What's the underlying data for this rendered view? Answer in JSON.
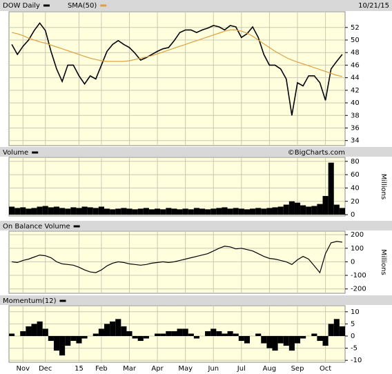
{
  "chart_data": [
    {
      "type": "line",
      "date": "10/21/15",
      "series": [
        {
          "name": "DOW Daily",
          "color": "#000000",
          "values": [
            49.3,
            47.7,
            49,
            50,
            51.5,
            52.7,
            51.5,
            48.2,
            45.4,
            43.4,
            46,
            46,
            44.3,
            43,
            44.3,
            43.8,
            46,
            48.2,
            49.3,
            49.9,
            49.3,
            48.8,
            47.9,
            46.8,
            47.2,
            47.7,
            48.2,
            48.6,
            48.8,
            49.9,
            51.2,
            51.6,
            51.6,
            51.2,
            51.6,
            51.9,
            52.3,
            52.1,
            51.6,
            52.3,
            52.1,
            50.4,
            51,
            52.1,
            50.4,
            47.7,
            46,
            46,
            45.4,
            43.8,
            38,
            43.2,
            42.7,
            44.3,
            44.3,
            43.2,
            40.4,
            45.4,
            46.6,
            47.7
          ]
        },
        {
          "name": "SMA(50)",
          "color": "#e0a040",
          "values": [
            51.2,
            51,
            50.7,
            50.3,
            50,
            49.7,
            49.5,
            49.2,
            48.9,
            48.6,
            48.3,
            48,
            47.7,
            47.4,
            47.1,
            46.9,
            46.7,
            46.6,
            46.6,
            46.6,
            46.6,
            46.7,
            46.9,
            47.1,
            47.3,
            47.5,
            47.8,
            48.1,
            48.4,
            48.7,
            49,
            49.3,
            49.6,
            49.9,
            50.2,
            50.5,
            50.8,
            51.1,
            51.4,
            51.6,
            51.6,
            51.4,
            51.1,
            50.6,
            50,
            49.4,
            48.8,
            48.2,
            47.7,
            47.2,
            46.8,
            46.5,
            46.2,
            45.9,
            45.6,
            45.3,
            45,
            44.7,
            44.4,
            44.2
          ]
        }
      ],
      "ylim": [
        33.2,
        54.5
      ],
      "yticks": [
        34,
        36,
        38,
        40,
        42,
        44,
        46,
        48,
        50,
        52
      ],
      "grid": true
    },
    {
      "type": "bar",
      "credit": "©BigCharts.com",
      "y_label": "Millions",
      "series": [
        {
          "name": "Volume",
          "color": "#000000",
          "values": [
            12,
            10,
            11,
            9,
            10,
            12,
            13,
            11,
            12,
            10,
            9,
            11,
            10,
            12,
            11,
            10,
            12,
            9,
            8,
            9,
            10,
            9,
            8,
            9,
            10,
            8,
            9,
            8,
            10,
            9,
            8,
            9,
            8,
            10,
            9,
            8,
            9,
            10,
            11,
            9,
            10,
            9,
            8,
            9,
            10,
            9,
            10,
            11,
            12,
            15,
            20,
            18,
            14,
            12,
            13,
            16,
            28,
            78,
            15,
            10
          ]
        }
      ],
      "ylim": [
        -2,
        86
      ],
      "yticks": [
        0,
        20,
        40,
        60,
        80
      ],
      "grid": true
    },
    {
      "type": "line",
      "y_label": "Millions",
      "series": [
        {
          "name": "On Balance Volume",
          "color": "#000000",
          "values": [
            0,
            -5,
            10,
            20,
            35,
            50,
            45,
            30,
            0,
            -15,
            -20,
            -25,
            -40,
            -60,
            -75,
            -80,
            -60,
            -30,
            -10,
            0,
            -5,
            -15,
            -20,
            -25,
            -20,
            -10,
            -5,
            0,
            -5,
            0,
            10,
            20,
            30,
            40,
            50,
            60,
            80,
            100,
            115,
            110,
            95,
            100,
            90,
            80,
            60,
            40,
            25,
            20,
            10,
            0,
            -20,
            15,
            40,
            20,
            -30,
            -80,
            60,
            140,
            150,
            145
          ]
        }
      ],
      "ylim": [
        -232,
        226
      ],
      "yticks": [
        -200,
        -100,
        0,
        100,
        200
      ],
      "grid": true
    },
    {
      "type": "bar",
      "series": [
        {
          "name": "Momentum(12)",
          "color": "#000000",
          "values": [
            1,
            0,
            2,
            4,
            5,
            6,
            3,
            -2,
            -6,
            -8,
            -4,
            -2,
            -3,
            -1,
            0,
            1,
            3,
            5,
            6,
            7,
            4,
            2,
            -1,
            -2,
            -1,
            0,
            1,
            1,
            2,
            2,
            3,
            3,
            1,
            -1,
            0,
            2,
            3,
            2,
            1,
            2,
            1,
            -2,
            -3,
            0,
            1,
            -3,
            -5,
            -6,
            -3,
            -4,
            -6,
            -3,
            -1,
            0,
            1,
            -2,
            -4,
            5,
            7,
            4
          ]
        }
      ],
      "ylim": [
        -10.8,
        12.5
      ],
      "yticks": [
        -10,
        -5,
        0,
        5,
        10
      ],
      "grid": true,
      "categories": [
        null,
        null,
        "Nov",
        null,
        null,
        null,
        "Dec",
        null,
        null,
        null,
        null,
        null,
        "15",
        null,
        null,
        null,
        "Feb",
        null,
        null,
        null,
        null,
        "Mar",
        null,
        null,
        null,
        null,
        "Apr",
        null,
        null,
        null,
        null,
        "May",
        null,
        null,
        null,
        null,
        "Jun",
        null,
        null,
        null,
        null,
        "Jul",
        null,
        null,
        null,
        null,
        "Aug",
        null,
        null,
        null,
        null,
        "Sep",
        null,
        null,
        null,
        null,
        "Oct",
        null,
        null,
        null
      ]
    }
  ]
}
